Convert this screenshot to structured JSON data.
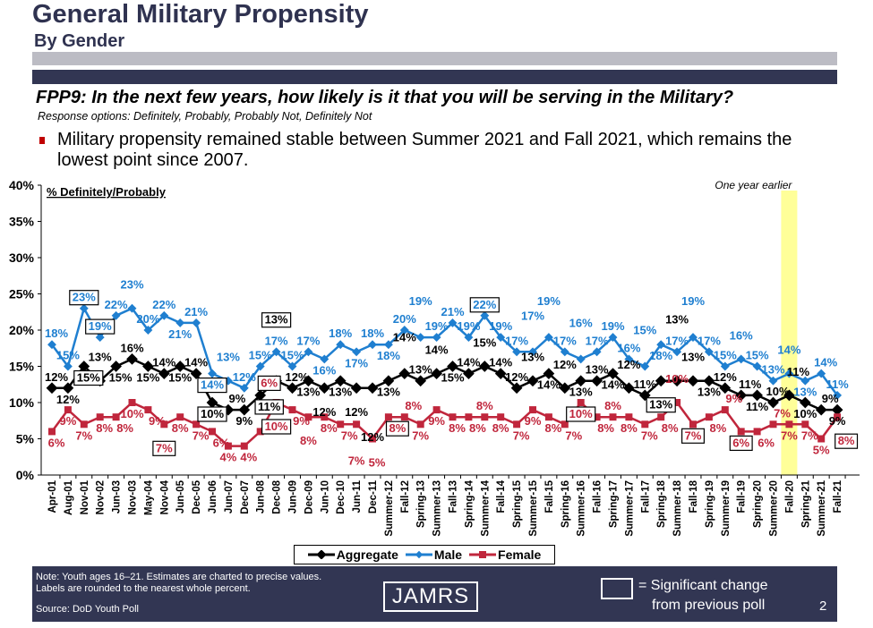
{
  "header": {
    "title": "General Military Propensity",
    "subtitle": "By Gender"
  },
  "question": "FPP9:  In the next few years, how likely is it that you will be serving in the Military?",
  "response_options": "Response options:  Definitely, Probably, Probably Not, Definitely Not",
  "bullet": "Military propensity remained stable between Summer 2021 and Fall 2021, which remains the lowest point since 2007.",
  "footer": {
    "note_line1": "Note:  Youth ages 16–21.  Estimates are charted to precise values.",
    "note_line2": "Labels are rounded to the nearest whole percent.",
    "source": "Source:  DoD Youth Poll",
    "logo": "JAMRS",
    "sig_line1": "= Significant change",
    "sig_line2": "from previous poll",
    "page_number": "2"
  },
  "colors": {
    "aggregate": "#000000",
    "male": "#1f7fd0",
    "female": "#c0263c",
    "highlight": "#ffff99"
  },
  "chart_data": {
    "type": "line",
    "title": "% Definitely/Probably",
    "annotation": "One year earlier",
    "highlight_category": "Fall-20",
    "ylim": [
      0,
      40
    ],
    "yticks": [
      "0%",
      "5%",
      "10%",
      "15%",
      "20%",
      "25%",
      "30%",
      "35%",
      "40%"
    ],
    "categories": [
      "Apr-01",
      "Aug-01",
      "Nov-01",
      "Nov-02",
      "Jun-03",
      "Nov-03",
      "May-04",
      "Nov-04",
      "Jun-05",
      "Dec-05",
      "Jun-06",
      "Jun-07",
      "Dec-07",
      "Jun-08",
      "Dec-08",
      "Jun-09",
      "Dec-09",
      "Jun-10",
      "Dec-10",
      "Jun-11",
      "Dec-11",
      "Summer-12",
      "Fall-12",
      "Spring-13",
      "Summer-13",
      "Fall-13",
      "Spring-14",
      "Summer-14",
      "Fall-14",
      "Spring-15",
      "Summer-15",
      "Fall-15",
      "Spring-16",
      "Summer-16",
      "Fall-16",
      "Spring-17",
      "Summer-17",
      "Fall-17",
      "Spring-18",
      "Summer-18",
      "Fall-18",
      "Spring-19",
      "Summer-19",
      "Fall-19",
      "Spring-20",
      "Summer-20",
      "Fall-20",
      "Spring-21",
      "Summer-21",
      "Fall-21"
    ],
    "series": [
      {
        "name": "Aggregate",
        "key": "aggregate",
        "values": [
          12,
          12,
          15,
          13,
          15,
          16,
          15,
          14,
          15,
          14,
          10,
          9,
          9,
          11,
          13,
          12,
          13,
          12,
          13,
          12,
          12,
          13,
          14,
          13,
          14,
          15,
          14,
          15,
          14,
          12,
          13,
          14,
          12,
          13,
          13,
          14,
          12,
          11,
          13,
          13,
          13,
          13,
          12,
          11,
          11,
          10,
          11,
          10,
          9,
          9
        ],
        "significant": [
          2,
          10,
          13,
          14,
          38
        ]
      },
      {
        "name": "Male",
        "key": "male",
        "values": [
          18,
          15,
          23,
          19,
          22,
          23,
          20,
          22,
          21,
          21,
          14,
          13,
          12,
          15,
          17,
          15,
          17,
          16,
          18,
          17,
          18,
          18,
          20,
          19,
          19,
          21,
          19,
          22,
          19,
          17,
          17,
          19,
          17,
          16,
          17,
          19,
          16,
          15,
          18,
          17,
          19,
          17,
          15,
          16,
          15,
          13,
          14,
          13,
          14,
          11
        ],
        "significant": [
          2,
          3,
          10,
          27
        ]
      },
      {
        "name": "Female",
        "key": "female",
        "values": [
          6,
          9,
          7,
          8,
          8,
          10,
          9,
          7,
          8,
          7,
          6,
          4,
          4,
          6,
          10,
          9,
          8,
          8,
          7,
          7,
          5,
          8,
          8,
          7,
          9,
          8,
          8,
          8,
          8,
          7,
          9,
          8,
          7,
          10,
          8,
          8,
          8,
          7,
          8,
          10,
          7,
          8,
          9,
          6,
          6,
          7,
          7,
          7,
          5,
          8
        ],
        "significant": [
          7,
          13,
          14,
          21,
          33,
          40,
          43,
          49
        ]
      }
    ],
    "legend": {
      "position": "bottom-center",
      "entries": [
        "Aggregate",
        "Male",
        "Female"
      ]
    }
  }
}
